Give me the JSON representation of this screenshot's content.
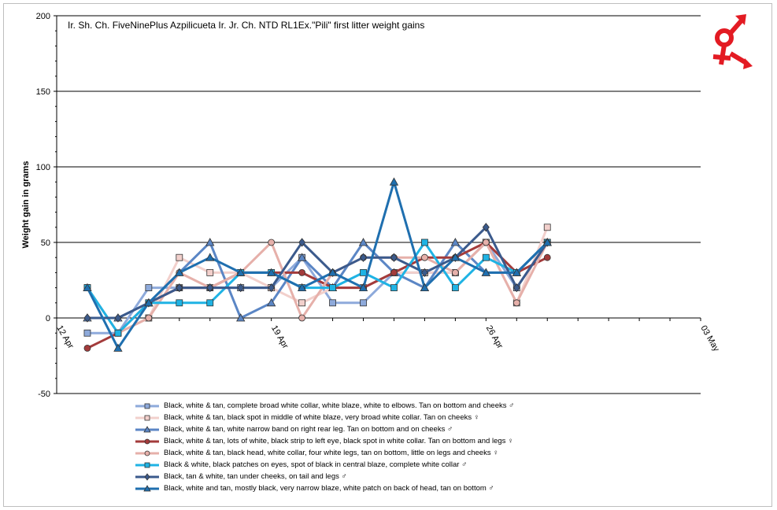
{
  "chart_data": {
    "type": "line",
    "title": "Ir. Sh. Ch. FiveNinePlus Azpilicueta Ir. Jr. Ch. NTD RL1Ex.\"Pili\" first litter weight gains",
    "xlabel": "",
    "ylabel": "Weight gain in grams",
    "ylim": [
      -50,
      200
    ],
    "yticks": [
      -50,
      0,
      50,
      100,
      150,
      200
    ],
    "xlim": [
      "2023-04-12",
      "2023-05-03"
    ],
    "xticks": [
      "12 Apr",
      "19 Apr",
      "26 Apr",
      "03 May"
    ],
    "grid": "horizontal major",
    "legend_position": "bottom",
    "x": [
      "2023-04-13",
      "2023-04-14",
      "2023-04-15",
      "2023-04-16",
      "2023-04-17",
      "2023-04-18",
      "2023-04-19",
      "2023-04-20",
      "2023-04-21",
      "2023-04-22",
      "2023-04-23",
      "2023-04-24",
      "2023-04-25",
      "2023-04-26",
      "2023-04-27",
      "2023-04-28"
    ],
    "series": [
      {
        "name": "Black, white & tan, complete broad white collar, white blaze, white to elbows. Tan on bottom and cheeks ♂",
        "color": "#8eaadb",
        "marker": "square",
        "values": [
          -10,
          -10,
          20,
          20,
          20,
          20,
          20,
          40,
          10,
          10,
          30,
          30,
          30,
          50,
          20,
          50
        ]
      },
      {
        "name": "Black, white & tan, black spot in middle of white blaze, very broad white collar. Tan on cheeks ♀",
        "color": "#f2d0cc",
        "marker": "square",
        "values": [
          20,
          -10,
          0,
          40,
          30,
          30,
          20,
          10,
          20,
          20,
          30,
          30,
          30,
          50,
          10,
          60
        ]
      },
      {
        "name": "Black, white & tan, white narrow band on right rear leg. Tan on bottom and on cheeks ♂",
        "color": "#5b86c5",
        "marker": "triangle",
        "values": [
          0,
          0,
          10,
          30,
          50,
          0,
          10,
          40,
          20,
          50,
          30,
          20,
          50,
          30,
          30,
          50
        ]
      },
      {
        "name": "Black, white & tan, lots of white, black strip to left eye, black spot in white collar. Tan on bottom and legs ♀",
        "color": "#a33b3b",
        "marker": "circle",
        "values": [
          -20,
          -10,
          10,
          20,
          20,
          30,
          30,
          30,
          20,
          20,
          30,
          40,
          40,
          50,
          30,
          40
        ]
      },
      {
        "name": "Black, white & tan, black head, white collar, four white legs, tan on bottom, little on legs and cheeks ♀",
        "color": "#e6b0aa",
        "marker": "circle",
        "values": [
          20,
          -10,
          0,
          30,
          20,
          30,
          50,
          0,
          30,
          40,
          40,
          40,
          30,
          50,
          10,
          50
        ]
      },
      {
        "name": "Black & white, black patches on eyes, spot of black in central blaze, complete white collar ♂",
        "color": "#1fb3e4",
        "marker": "square",
        "values": [
          20,
          -10,
          10,
          10,
          10,
          30,
          30,
          20,
          20,
          30,
          20,
          50,
          20,
          40,
          30,
          50
        ]
      },
      {
        "name": "Black, tan & white, tan under cheeks, on tail and legs ♂",
        "color": "#3b5a8c",
        "marker": "diamond",
        "values": [
          0,
          0,
          10,
          20,
          20,
          20,
          20,
          50,
          30,
          40,
          40,
          30,
          40,
          60,
          20,
          50
        ]
      },
      {
        "name": "Black, white and tan, mostly black, very narrow blaze, white patch on back of head, tan on bottom ♂",
        "color": "#1f6faf",
        "marker": "triangle",
        "values": [
          20,
          -20,
          10,
          30,
          40,
          30,
          30,
          20,
          30,
          20,
          90,
          20,
          40,
          30,
          30,
          50
        ]
      }
    ]
  },
  "legend": {
    "items": [
      "Black, white & tan, complete broad white collar, white blaze, white to elbows. Tan on bottom and cheeks ♂",
      "Black, white & tan, black spot in middle of white blaze, very broad white collar. Tan on cheeks ♀",
      "Black, white & tan, white narrow band on right rear leg. Tan on bottom and on cheeks ♂",
      "Black, white & tan, lots of white, black strip to left eye, black spot in white collar. Tan on bottom and legs ♀",
      "Black, white & tan, black head, white collar, four white legs, tan on bottom, little on legs and cheeks ♀",
      "Black & white, black patches on eyes, spot of black in central blaze, complete white collar ♂",
      "Black, tan & white, tan under cheeks, on tail and legs ♂",
      "Black, white and tan, mostly black, very narrow blaze, white patch on back of head, tan on bottom ♂"
    ]
  },
  "logo": {
    "name": "gender-symbols-icon",
    "color": "#e31b23"
  }
}
